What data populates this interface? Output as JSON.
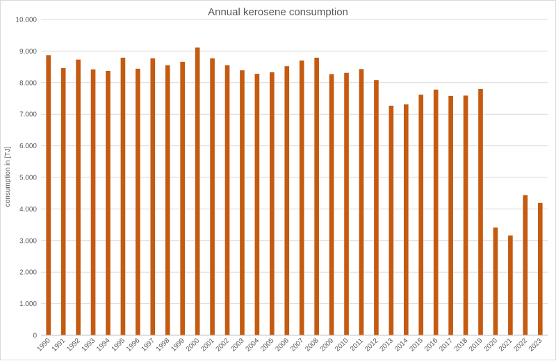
{
  "chart_data": {
    "type": "bar",
    "title": "Annual kerosene consumption",
    "xlabel": "",
    "ylabel": "consumption in [TJ]",
    "ylim": [
      0,
      10000
    ],
    "yticks": [
      0,
      1000,
      2000,
      3000,
      4000,
      5000,
      6000,
      7000,
      8000,
      9000,
      10000
    ],
    "ytick_labels": [
      "0",
      "1.000",
      "2.000",
      "3.000",
      "4.000",
      "5.000",
      "6.000",
      "7.000",
      "8.000",
      "9.000",
      "10.000"
    ],
    "grid": true,
    "legend": "none",
    "bar_color": "#c55a11",
    "categories": [
      "1990",
      "1991",
      "1992",
      "1993",
      "1994",
      "1995",
      "1996",
      "1997",
      "1998",
      "1999",
      "2000",
      "2001",
      "2002",
      "2003",
      "2004",
      "2005",
      "2006",
      "2007",
      "2008",
      "2009",
      "2010",
      "2011",
      "2012",
      "2013",
      "2014",
      "2015",
      "2016",
      "2017",
      "2018",
      "2019",
      "2020",
      "2021",
      "2022",
      "2023"
    ],
    "values": [
      8870,
      8460,
      8730,
      8420,
      8370,
      8790,
      8440,
      8770,
      8550,
      8660,
      9110,
      8770,
      8550,
      8390,
      8280,
      8330,
      8520,
      8700,
      8790,
      8270,
      8310,
      8430,
      8080,
      7270,
      7310,
      7620,
      7780,
      7580,
      7590,
      7800,
      3410,
      3160,
      4440,
      4190
    ]
  }
}
